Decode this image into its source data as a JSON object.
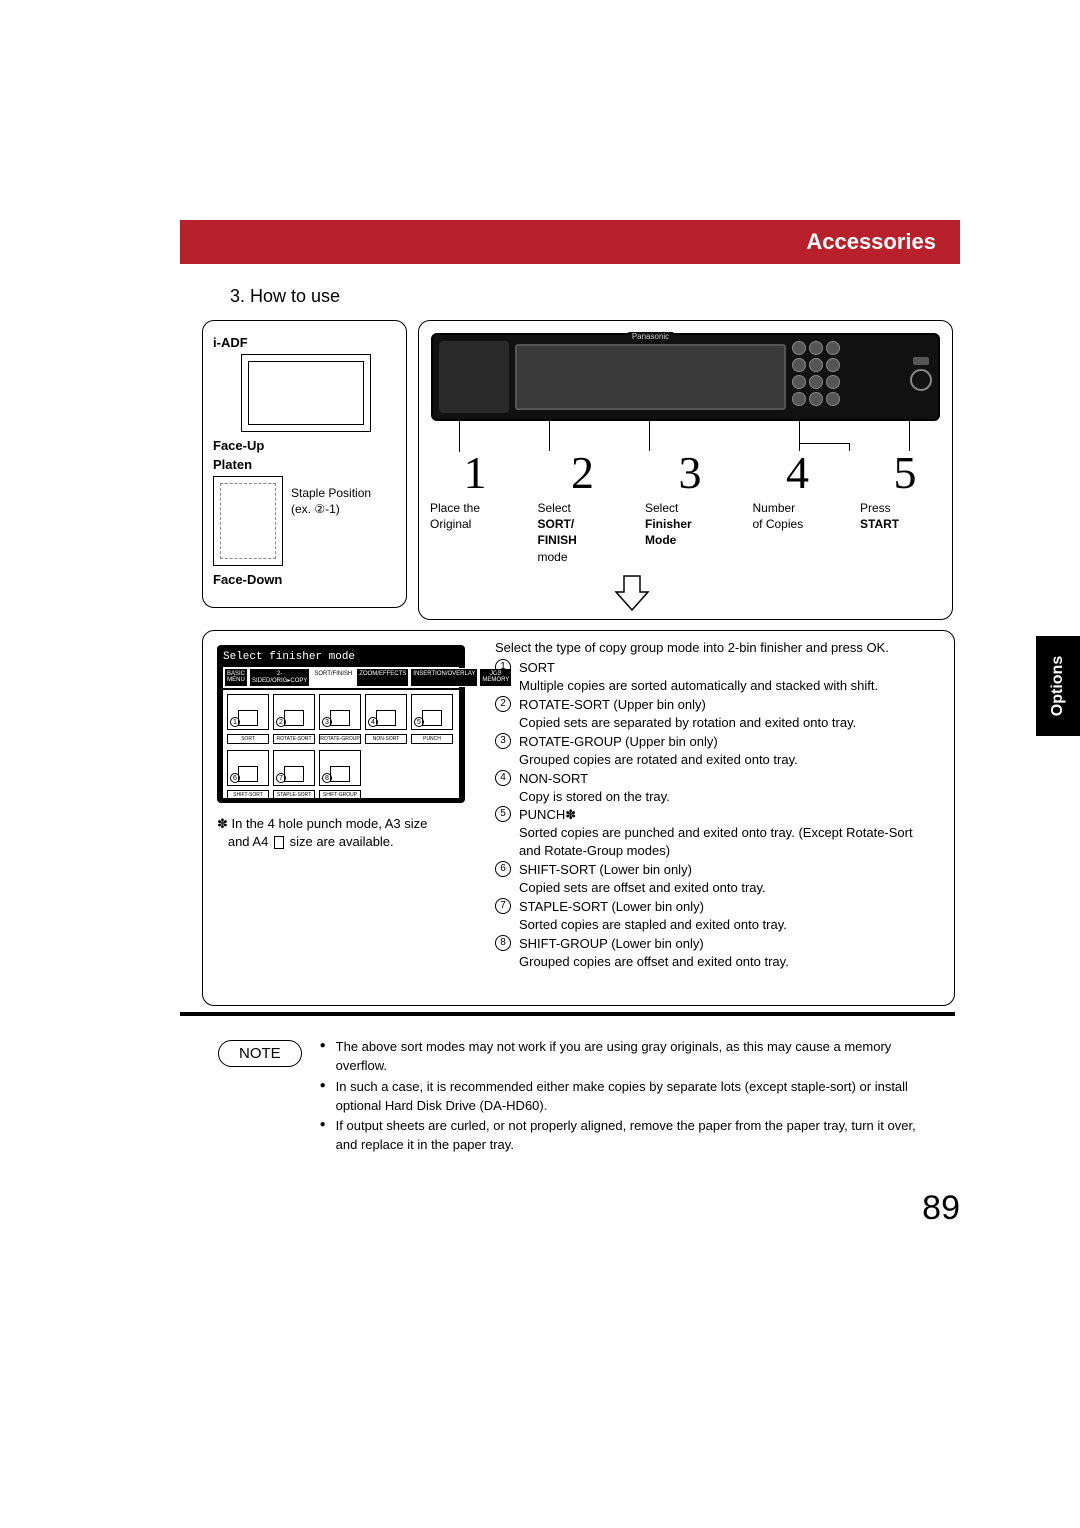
{
  "banner": {
    "title": "Accessories"
  },
  "side_tab": "Options",
  "section_title": "3. How to use",
  "left_col": {
    "iadf": "i-ADF",
    "face_up": "Face-Up",
    "platen": "Platen",
    "staple_line1": "Staple Position",
    "staple_line2": "(ex. ②-1)",
    "face_down": "Face-Down"
  },
  "panel": {
    "brand": "Panasonic"
  },
  "steps": [
    {
      "num": "1",
      "l1": "Place the",
      "l2": "Original",
      "l3": "",
      "bold2": false
    },
    {
      "num": "2",
      "l1": "Select",
      "l2": "SORT/",
      "l3": "FINISH",
      "l4": "mode",
      "bold2": true,
      "bold3": true
    },
    {
      "num": "3",
      "l1": "Select",
      "l2": "Finisher",
      "l3": "Mode",
      "bold2": true,
      "bold3": true
    },
    {
      "num": "4",
      "l1": "Number",
      "l2": "of Copies",
      "bold2": false
    },
    {
      "num": "5",
      "l1": "Press",
      "l2": "START",
      "bold2": true
    }
  ],
  "finisher_screen": {
    "title": "Select finisher mode",
    "tabs": [
      "BASIC MENU",
      "2-SIDED/ORIG▸COPY",
      "SORT/FINISH",
      "ZOOM/EFFECTS",
      "INSERTION/OVERLAY",
      "JOB MEMORY"
    ],
    "row1_labels": [
      "SORT",
      "ROTATE-SORT",
      "ROTATE-GROUP",
      "NON-SORT",
      "PUNCH"
    ],
    "row2_labels": [
      "SHIFT-SORT",
      "STAPLE-SORT",
      "SHIFT-GROUP"
    ],
    "nums_row1": [
      "1",
      "2",
      "3",
      "4",
      "5"
    ],
    "nums_row2": [
      "6",
      "7",
      "8"
    ]
  },
  "punch_note_1": "✽ In the 4 hole punch mode, A3 size",
  "punch_note_2": "and A4",
  "punch_note_3": "size are available.",
  "mode_intro": "Select the type of copy group mode into 2-bin finisher and press OK.",
  "modes": [
    {
      "n": "1",
      "t": "SORT",
      "d": "Multiple copies are sorted automatically and stacked with shift."
    },
    {
      "n": "2",
      "t": "ROTATE-SORT (Upper bin only)",
      "d": "Copied sets are separated by rotation and exited onto tray."
    },
    {
      "n": "3",
      "t": "ROTATE-GROUP (Upper bin only)",
      "d": "Grouped copies are rotated and exited onto tray."
    },
    {
      "n": "4",
      "t": "NON-SORT",
      "d": "Copy is stored on the tray."
    },
    {
      "n": "5",
      "t": "PUNCH✽",
      "d": "Sorted copies are punched and exited onto tray. (Except Rotate-Sort and Rotate-Group modes)"
    },
    {
      "n": "6",
      "t": "SHIFT-SORT (Lower bin only)",
      "d": "Copied sets are offset and exited onto tray."
    },
    {
      "n": "7",
      "t": "STAPLE-SORT (Lower bin only)",
      "d": "Sorted copies are stapled and exited onto tray."
    },
    {
      "n": "8",
      "t": "SHIFT-GROUP (Lower bin only)",
      "d": "Grouped copies are offset and exited onto tray."
    }
  ],
  "note_label": "NOTE",
  "notes": [
    "The above sort modes may not work if you are using gray originals, as this may cause a memory overflow.",
    "In such a case, it is recommended either make copies by separate lots (except staple-sort) or install optional Hard Disk Drive (DA-HD60).",
    "If output sheets are curled, or not properly aligned, remove the paper from the paper tray, turn it over, and replace it in the paper tray."
  ],
  "page_number": "89",
  "colors": {
    "banner": "#b8202c",
    "tab": "#000000"
  }
}
